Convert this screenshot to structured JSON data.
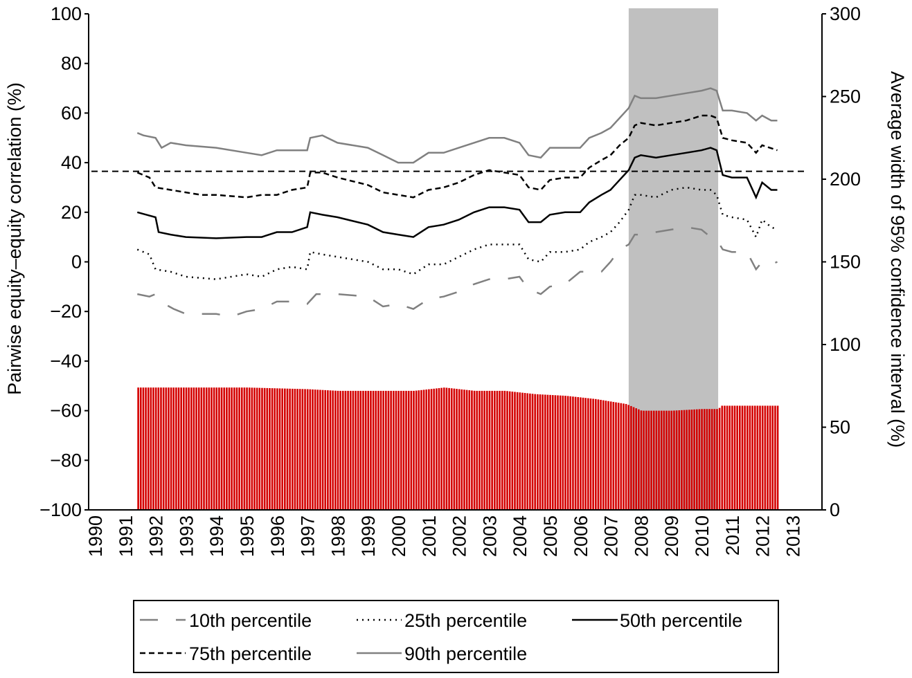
{
  "chart_data": {
    "type": "line",
    "ylabel": "Pairwise equity–equity correlation (%)",
    "y2label": "Average width of 95% confidence interval (%)",
    "ylim": [
      -100,
      100
    ],
    "y2lim": [
      0,
      300
    ],
    "xlim": [
      1990,
      2013
    ],
    "yticks": [
      "100",
      "80",
      "60",
      "40",
      "20",
      "0",
      "−20",
      "−40",
      "−60",
      "−80",
      "−100"
    ],
    "y2ticks": [
      "300",
      "250",
      "200",
      "150",
      "100",
      "50",
      "0"
    ],
    "xticks": [
      "1990",
      "1991",
      "1992",
      "1993",
      "1994",
      "1995",
      "1996",
      "1997",
      "1998",
      "1999",
      "2000",
      "2001",
      "2002",
      "2003",
      "2004",
      "2005",
      "2006",
      "2007",
      "2008",
      "2009",
      "2010",
      "2011",
      "2012",
      "2013"
    ],
    "shaded_period": [
      2007.6,
      2010.55
    ],
    "average_line": 36.5,
    "colors": {
      "bars": "#d40000",
      "shade": "#c0c0c0",
      "grey": "#808080",
      "black": "#000000"
    },
    "series": [
      {
        "name": "10th percentile",
        "style": "longdash-grey",
        "x": [
          1991.4,
          1991.8,
          1992,
          1992.3,
          1992.6,
          1993,
          1994,
          1994.5,
          1995,
          1995.5,
          1996,
          1996.5,
          1997,
          1997.3,
          1997.6,
          1998,
          1999,
          1999.5,
          2000,
          2000.5,
          2001,
          2001.5,
          2002,
          2002.5,
          2003,
          2003.5,
          2004,
          2004.3,
          2004.7,
          2005,
          2005.5,
          2006,
          2006.3,
          2006.7,
          2007,
          2007.3,
          2007.6,
          2007.8,
          2008,
          2008.5,
          2009,
          2009.5,
          2010,
          2010.3,
          2010.5,
          2010.7,
          2011,
          2011.5,
          2011.8,
          2012,
          2012.3,
          2012.5
        ],
        "y": [
          -13,
          -14,
          -13,
          -17,
          -19,
          -21,
          -21,
          -22,
          -20,
          -19,
          -16,
          -16,
          -17,
          -13,
          -13,
          -13,
          -14,
          -18,
          -17,
          -19,
          -15,
          -14,
          -12,
          -9,
          -7,
          -7,
          -6,
          -11,
          -13,
          -10,
          -9,
          -4,
          -4,
          -4,
          0,
          5,
          7,
          11,
          11,
          12,
          13,
          14,
          13,
          10,
          9,
          5,
          4,
          4,
          -3,
          0,
          -1,
          0
        ]
      },
      {
        "name": "25th percentile",
        "style": "dotted-black",
        "x": [
          1991.4,
          1991.8,
          1992,
          1992.5,
          1993,
          1994,
          1995,
          1995.5,
          1996,
          1996.5,
          1997,
          1997.1,
          1997.5,
          1998,
          1999,
          1999.5,
          2000,
          2000.5,
          2001,
          2001.5,
          2002,
          2002.5,
          2003,
          2003.5,
          2004,
          2004.3,
          2004.7,
          2005,
          2005.5,
          2006,
          2006.3,
          2006.7,
          2007,
          2007.3,
          2007.6,
          2007.8,
          2008,
          2008.5,
          2009,
          2009.5,
          2010,
          2010.3,
          2010.5,
          2010.7,
          2011,
          2011.5,
          2011.8,
          2012,
          2012.3,
          2012.5
        ],
        "y": [
          5,
          3,
          -3,
          -4,
          -6,
          -7,
          -5,
          -6,
          -3,
          -2,
          -3,
          4,
          3,
          2,
          0,
          -3,
          -3,
          -5,
          -1,
          -1,
          2,
          5,
          7,
          7,
          7,
          1,
          0,
          4,
          4,
          5,
          8,
          10,
          12,
          16,
          21,
          27,
          27,
          26,
          29,
          30,
          29,
          29,
          27,
          19,
          18,
          17,
          10,
          17,
          14,
          13
        ]
      },
      {
        "name": "50th percentile",
        "style": "solid-black",
        "x": [
          1991.4,
          1991.7,
          1992,
          1992.1,
          1992.5,
          1993,
          1994,
          1995,
          1995.5,
          1996,
          1996.5,
          1997,
          1997.1,
          1997.5,
          1998,
          1999,
          1999.5,
          2000,
          2000.5,
          2001,
          2001.5,
          2002,
          2002.5,
          2003,
          2003.5,
          2004,
          2004.3,
          2004.7,
          2005,
          2005.5,
          2006,
          2006.3,
          2006.7,
          2007,
          2007.3,
          2007.6,
          2007.8,
          2008,
          2008.5,
          2009,
          2009.5,
          2010,
          2010.3,
          2010.5,
          2010.7,
          2011,
          2011.5,
          2011.8,
          2012,
          2012.3,
          2012.5
        ],
        "y": [
          20,
          19,
          18,
          12,
          11,
          10,
          9.5,
          10,
          10,
          12,
          12,
          14,
          20,
          19,
          18,
          15,
          12,
          11,
          10,
          14,
          15,
          17,
          20,
          22,
          22,
          21,
          16,
          16,
          19,
          20,
          20,
          24,
          27,
          29,
          33,
          37,
          42,
          43,
          42,
          43,
          44,
          45,
          46,
          45,
          35,
          34,
          34,
          26,
          32,
          29,
          29
        ]
      },
      {
        "name": "75th percentile",
        "style": "shortdash-black",
        "x": [
          1991.4,
          1991.8,
          1992,
          1992.5,
          1993,
          1993.5,
          1994,
          1995,
          1995.5,
          1996,
          1996.5,
          1997,
          1997.1,
          1997.5,
          1998,
          1999,
          1999.5,
          2000,
          2000.5,
          2001,
          2001.5,
          2002,
          2002.5,
          2003,
          2003.5,
          2004,
          2004.3,
          2004.7,
          2005,
          2005.5,
          2006,
          2006.3,
          2006.7,
          2007,
          2007.3,
          2007.6,
          2007.8,
          2008,
          2008.5,
          2009,
          2009.5,
          2010,
          2010.3,
          2010.5,
          2010.7,
          2011,
          2011.5,
          2011.8,
          2012,
          2012.5
        ],
        "y": [
          36,
          34,
          30,
          29,
          28,
          27,
          27,
          26,
          27,
          27,
          29,
          30,
          36,
          36,
          34,
          31,
          28,
          27,
          26,
          29,
          30,
          32,
          35,
          37,
          36,
          35,
          30,
          29,
          33,
          34,
          34,
          38,
          41,
          43,
          47,
          50,
          55,
          56,
          55,
          56,
          57,
          59,
          59,
          58,
          50,
          49,
          48,
          44,
          47,
          45
        ]
      },
      {
        "name": "90th percentile",
        "style": "solid-grey",
        "x": [
          1991.4,
          1991.6,
          1992,
          1992.2,
          1992.5,
          1993,
          1994,
          1995,
          1995.5,
          1996,
          1996.5,
          1997,
          1997.1,
          1997.5,
          1998,
          1999,
          1999.5,
          2000,
          2000.5,
          2001,
          2001.5,
          2002,
          2002.5,
          2003,
          2003.5,
          2004,
          2004.3,
          2004.7,
          2005,
          2005.5,
          2006,
          2006.3,
          2006.7,
          2007,
          2007.3,
          2007.6,
          2007.8,
          2008,
          2008.5,
          2009,
          2009.5,
          2010,
          2010.3,
          2010.5,
          2010.7,
          2011,
          2011.5,
          2011.8,
          2012,
          2012.3,
          2012.5
        ],
        "y": [
          52,
          51,
          50,
          46,
          48,
          47,
          46,
          44,
          43,
          45,
          45,
          45,
          50,
          51,
          48,
          46,
          43,
          40,
          40,
          44,
          44,
          46,
          48,
          50,
          50,
          48,
          43,
          42,
          46,
          46,
          46,
          50,
          52,
          54,
          58,
          62,
          67,
          66,
          66,
          67,
          68,
          69,
          70,
          69,
          61,
          61,
          60,
          57,
          59,
          57,
          57
        ]
      }
    ],
    "bars": {
      "axis": "right",
      "start": 1991.4,
      "end": 2012.55,
      "per_year": 12,
      "anchors_x": [
        1991.4,
        1993,
        1995,
        1997,
        1998,
        1999.5,
        2000.5,
        2001.5,
        2002.5,
        2003.5,
        2004.5,
        2005.5,
        2006.5,
        2007.5,
        2008,
        2009,
        2010,
        2010.55,
        2010.6,
        2011.5,
        2012.5
      ],
      "anchors_y": [
        74,
        74,
        74,
        73,
        72,
        72,
        72,
        74,
        72,
        72,
        70,
        69,
        67,
        64,
        60,
        60,
        61,
        61,
        63,
        63,
        63
      ]
    },
    "legend": {
      "position": "bottom",
      "entries": [
        "10th percentile",
        "25th percentile",
        "50th percentile",
        "75th percentile",
        "90th percentile"
      ]
    }
  }
}
